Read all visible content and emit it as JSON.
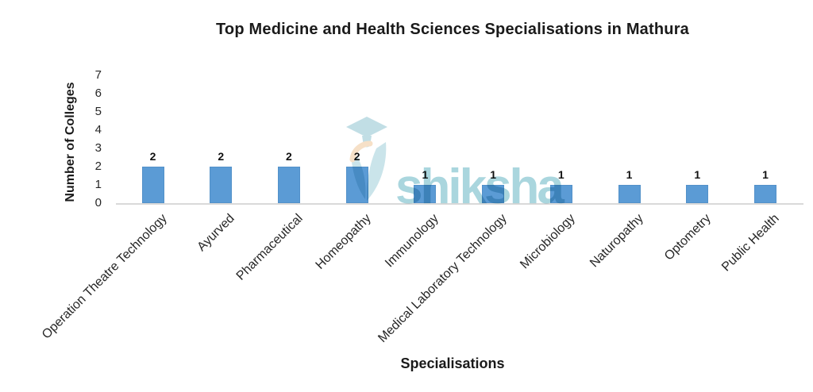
{
  "title": "Top Medicine and Health Sciences Specialisations in Mathura",
  "watermark": {
    "brand": "shiksha",
    "icon": "graduation-cap",
    "color": "#A6D4DD"
  },
  "chart_data": {
    "type": "bar",
    "title": "Top Medicine and Health Sciences Specialisations in Mathura",
    "xlabel": "Specialisations",
    "ylabel": "Number of Colleges",
    "categories": [
      "Operation Theatre Technology",
      "Ayurved",
      "Pharmaceutical",
      "Homeopathy",
      "Immunology",
      "Medical Laboratory Technology",
      "Microbiology",
      "Naturopathy",
      "Optometry",
      "Public Health"
    ],
    "values": [
      2,
      2,
      2,
      2,
      1,
      1,
      1,
      1,
      1,
      1
    ],
    "ylim": [
      0,
      7
    ],
    "yticks": [
      0,
      1,
      2,
      3,
      4,
      5,
      6,
      7
    ],
    "bar_color": "#5B9BD5",
    "axis_line_color": "#D9D9D9",
    "grid": false,
    "legend": "none",
    "data_labels": true,
    "category_label_rotation_deg": 45
  }
}
